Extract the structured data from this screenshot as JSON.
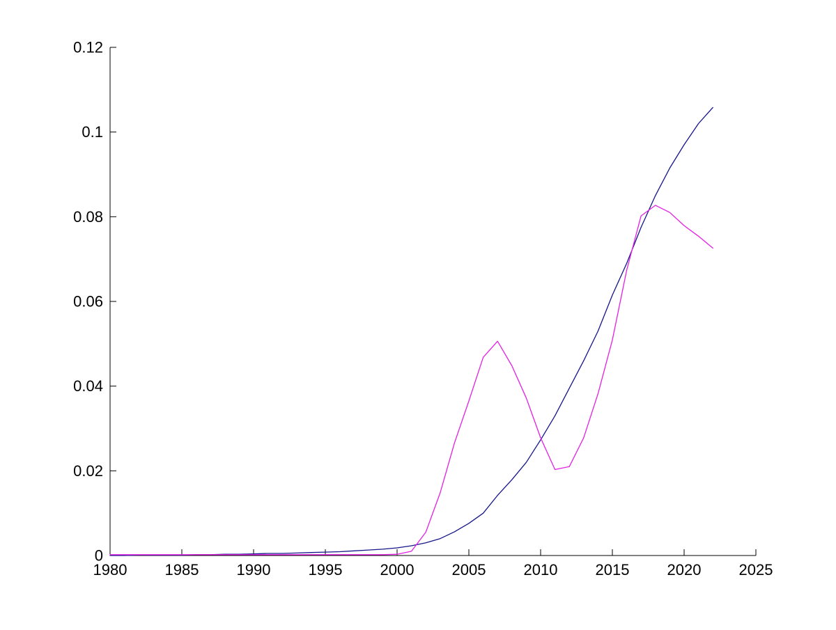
{
  "figure": {
    "background": "#ffffff",
    "axis_color": "#000000",
    "tick_label_color": "#000000"
  },
  "chart_data": {
    "type": "line",
    "title": "",
    "xlabel": "",
    "ylabel": "",
    "grid": false,
    "legend": null,
    "box": false,
    "xlim": [
      1980,
      2025
    ],
    "ylim": [
      0,
      0.12
    ],
    "x_ticks": [
      1980,
      1985,
      1990,
      1995,
      2000,
      2005,
      2010,
      2015,
      2020,
      2025
    ],
    "x_tick_labels": [
      "1980",
      "1985",
      "1990",
      "1995",
      "2000",
      "2005",
      "2010",
      "2015",
      "2020",
      "2025"
    ],
    "y_ticks": [
      0,
      0.02,
      0.04,
      0.06,
      0.08,
      0.1,
      0.12
    ],
    "y_tick_labels": [
      "0",
      "0.02",
      "0.04",
      "0.06",
      "0.08",
      "0.1",
      "0.12"
    ],
    "x": [
      1980,
      1981,
      1982,
      1983,
      1984,
      1985,
      1986,
      1987,
      1988,
      1989,
      1990,
      1991,
      1992,
      1993,
      1994,
      1995,
      1996,
      1997,
      1998,
      1999,
      2000,
      2001,
      2002,
      2003,
      2004,
      2005,
      2006,
      2007,
      2008,
      2009,
      2010,
      2011,
      2012,
      2013,
      2014,
      2015,
      2016,
      2017,
      2018,
      2019,
      2020,
      2021,
      2022
    ],
    "series": [
      {
        "name": "dark-blue-smooth-curve",
        "color": "#14148c",
        "values": [
          0.0,
          0.0,
          0.0001,
          0.0001,
          0.0001,
          0.0001,
          0.0002,
          0.0002,
          0.0003,
          0.0003,
          0.0004,
          0.0005,
          0.0005,
          0.0006,
          0.0007,
          0.0008,
          0.0009,
          0.0011,
          0.0013,
          0.0015,
          0.0018,
          0.0023,
          0.003,
          0.004,
          0.0056,
          0.0076,
          0.01,
          0.0142,
          0.0179,
          0.022,
          0.0273,
          0.033,
          0.0395,
          0.046,
          0.053,
          0.0615,
          0.069,
          0.0775,
          0.085,
          0.0915,
          0.097,
          0.102,
          0.1058
        ]
      },
      {
        "name": "magenta-fluctuating-curve",
        "color": "#e320e3",
        "values": [
          0.0002,
          0.0002,
          0.0002,
          0.0002,
          0.0002,
          0.0002,
          0.0002,
          0.0002,
          0.0002,
          0.0002,
          0.0002,
          0.0002,
          0.0002,
          0.0002,
          0.0002,
          0.0002,
          0.0002,
          0.0002,
          0.0002,
          0.0002,
          0.0003,
          0.001,
          0.0055,
          0.0148,
          0.0266,
          0.0365,
          0.0468,
          0.0506,
          0.0448,
          0.0372,
          0.0278,
          0.0203,
          0.021,
          0.0278,
          0.0382,
          0.0509,
          0.0674,
          0.0802,
          0.0827,
          0.081,
          0.0779,
          0.0754,
          0.0726
        ]
      }
    ]
  }
}
